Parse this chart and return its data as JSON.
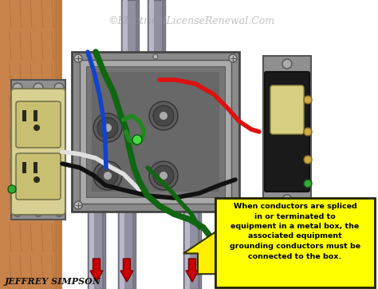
{
  "watermark": "©ElectricalLicenseRenewal.Com",
  "author": "JEFFREY SIMPSON",
  "annotation_text": "When conductors are spliced\nin or terminated to\nequipment in a metal box, the\nassociated equipment\ngrounding conductors must be\nconnected to the box.",
  "bg_color": "#ffffff",
  "wood_color": "#c8834a",
  "wood_mid": "#b87238",
  "wood_dark": "#8a5520",
  "metal_box_outer": "#8a8a8a",
  "metal_box_rim": "#aaaaaa",
  "metal_box_inner": "#757575",
  "metal_box_cavity": "#686868",
  "knockout_outer": "#5a5a5a",
  "knockout_inner": "#484848",
  "outlet_body": "#d8d090",
  "outlet_face": "#c8c070",
  "outlet_slot": "#2a2a20",
  "outlet_plate": "#909090",
  "switch_plate": "#909090",
  "switch_body": "#1a1a1a",
  "switch_toggle": "#d8d080",
  "conduit_color": "#9090a0",
  "conduit_light": "#b8b8c8",
  "wire_red": "#dd1111",
  "wire_black": "#111111",
  "wire_white": "#e0e0e0",
  "wire_green": "#116611",
  "wire_green2": "#228822",
  "wire_blue": "#1144cc",
  "annotation_bg": "#ffff00",
  "annotation_border": "#333300",
  "arrow_yellow": "#ffee00",
  "red_arrow_color": "#cc0000",
  "screw_color": "#aaaaaa",
  "brass_screw": "#ccaa44",
  "green_screw": "#33aa33"
}
